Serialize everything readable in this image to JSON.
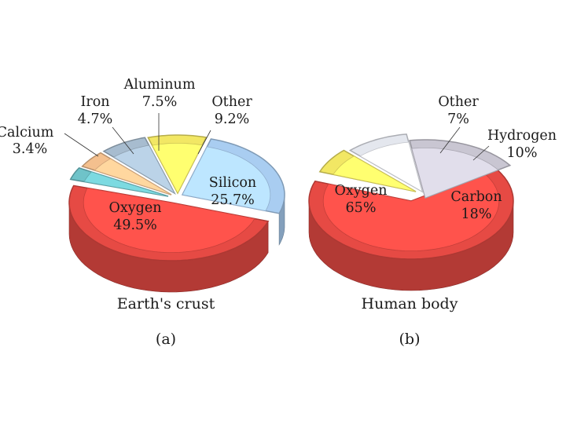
{
  "chart_data": [
    {
      "type": "pie",
      "title": "Earth's crust",
      "panel": "(a)",
      "unit": "%",
      "slices": [
        {
          "name": "Oxygen",
          "value_text": "49.5%",
          "value": 49.5,
          "color": "#e64a44"
        },
        {
          "name": "Silicon",
          "value_text": "25.7%",
          "value": 25.7,
          "color": "#a9cdf1"
        },
        {
          "name": "Other",
          "value_text": "9.2%",
          "value": 9.2,
          "color": "#f2e764"
        },
        {
          "name": "Aluminum",
          "value_text": "7.5%",
          "value": 7.5,
          "color": "#a7bccf"
        },
        {
          "name": "Iron",
          "value_text": "4.7%",
          "value": 4.7,
          "color": "#f4c08e"
        },
        {
          "name": "Calcium",
          "value_text": "3.4%",
          "value": 3.4,
          "color": "#6fc3c9"
        }
      ]
    },
    {
      "type": "pie",
      "title": "Human body",
      "panel": "(b)",
      "unit": "%",
      "slices": [
        {
          "name": "Oxygen",
          "value_text": "65%",
          "value": 65,
          "color": "#e64a44"
        },
        {
          "name": "Carbon",
          "value_text": "18%",
          "value": 18,
          "color": "#c9c6d2"
        },
        {
          "name": "Hydrogen",
          "value_text": "10%",
          "value": 10,
          "color": "#e4e7ee"
        },
        {
          "name": "Other",
          "value_text": "7%",
          "value": 7,
          "color": "#f2e764"
        }
      ]
    }
  ]
}
